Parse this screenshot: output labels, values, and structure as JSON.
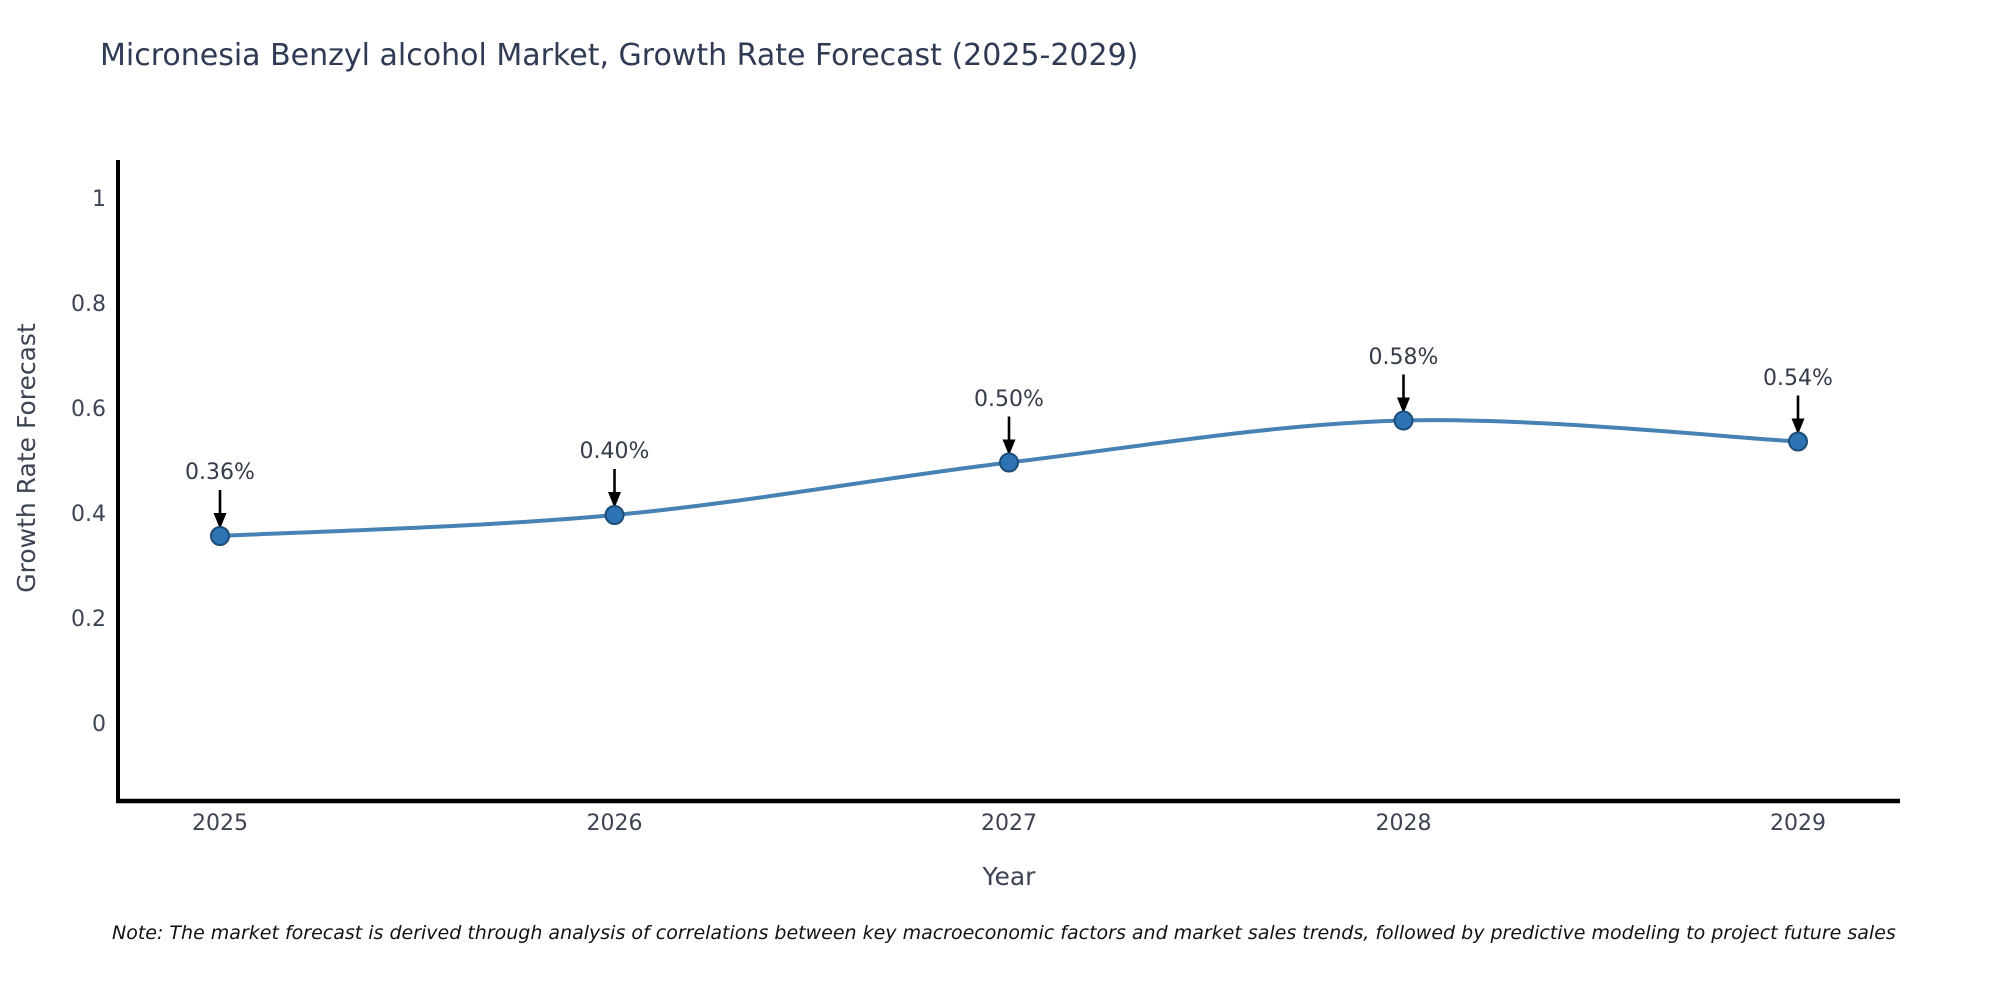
{
  "title": "Micronesia Benzyl alcohol Market, Growth Rate Forecast (2025-2029)",
  "note": "Note: The market forecast is derived through analysis of correlations between key macroeconomic factors and market sales trends, followed by predictive modeling to project future sales",
  "chart_data": {
    "type": "line",
    "title": "Micronesia Benzyl alcohol Market, Growth Rate Forecast (2025-2029)",
    "xlabel": "Year",
    "ylabel": "Growth Rate Forecast",
    "x": [
      2025,
      2026,
      2027,
      2028,
      2029
    ],
    "categories": [
      "2025",
      "2026",
      "2027",
      "2028",
      "2029"
    ],
    "values": [
      0.36,
      0.4,
      0.5,
      0.58,
      0.54
    ],
    "point_labels": [
      "0.36%",
      "0.40%",
      "0.50%",
      "0.58%",
      "0.54%"
    ],
    "ytick_labels": [
      "0",
      "0.2",
      "0.4",
      "0.6",
      "0.8",
      "1"
    ],
    "ytick_values": [
      0,
      0.2,
      0.4,
      0.6,
      0.8,
      1
    ],
    "ylim": [
      -0.145,
      1.076
    ],
    "grid": false,
    "legend": "none",
    "line_shape": "spline",
    "colors": {
      "line": "#4682b4",
      "marker_fill": "#2e74b5",
      "marker_edge": "#1d4d76",
      "arrow": "#000000",
      "axis": "#000000",
      "text": "#3c4353",
      "title_text": "#2f3a54",
      "background": "#ffffff"
    }
  }
}
